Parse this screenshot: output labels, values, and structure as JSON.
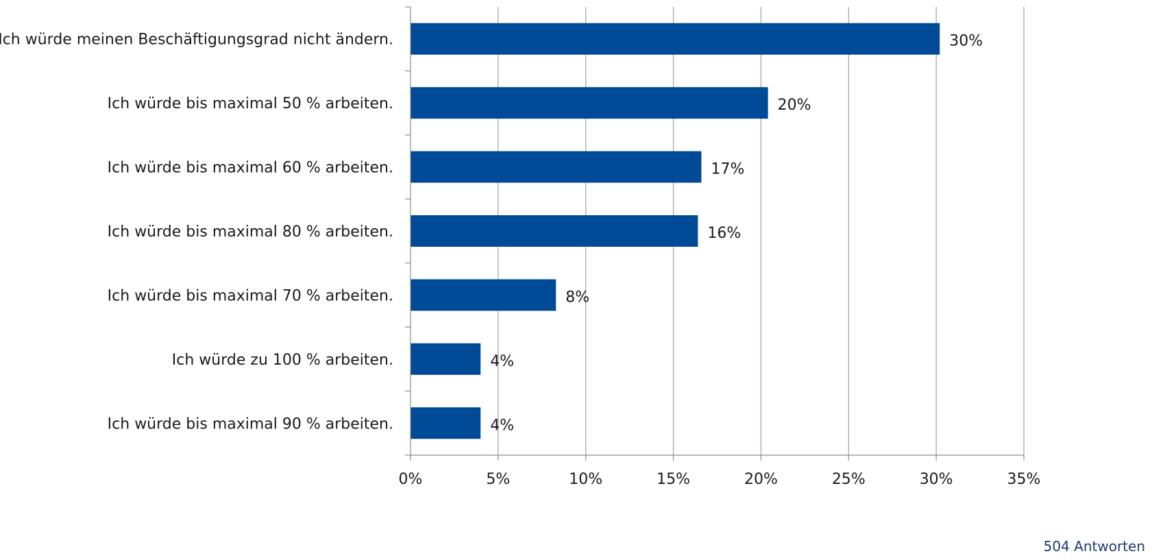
{
  "chart_data": {
    "type": "bar",
    "orientation": "horizontal",
    "categories": [
      "Ich würde meinen Beschäftigungsgrad nicht ändern.",
      "Ich würde bis maximal 50 % arbeiten.",
      "Ich würde bis maximal 60 % arbeiten.",
      "Ich würde bis maximal 80 % arbeiten.",
      "Ich würde bis maximal 70 % arbeiten.",
      "Ich würde zu 100 % arbeiten.",
      "Ich würde bis maximal 90 % arbeiten."
    ],
    "values": [
      30.2,
      20.4,
      16.6,
      16.4,
      8.3,
      4.0,
      4.0
    ],
    "value_labels": [
      "30%",
      "20%",
      "17%",
      "16%",
      "8%",
      "4%",
      "4%"
    ],
    "x_ticks": [
      "0%",
      "5%",
      "10%",
      "15%",
      "20%",
      "25%",
      "30%",
      "35%"
    ],
    "xlim": [
      0,
      35
    ],
    "title": "",
    "xlabel": "",
    "ylabel": "",
    "grid": true,
    "legend": "none"
  },
  "colors": {
    "bar": "#004a98",
    "grid": "#a0a0a0",
    "axis": "#8c8c8c",
    "footnote": "#1f3a73"
  },
  "footnote": "504 Antworten"
}
